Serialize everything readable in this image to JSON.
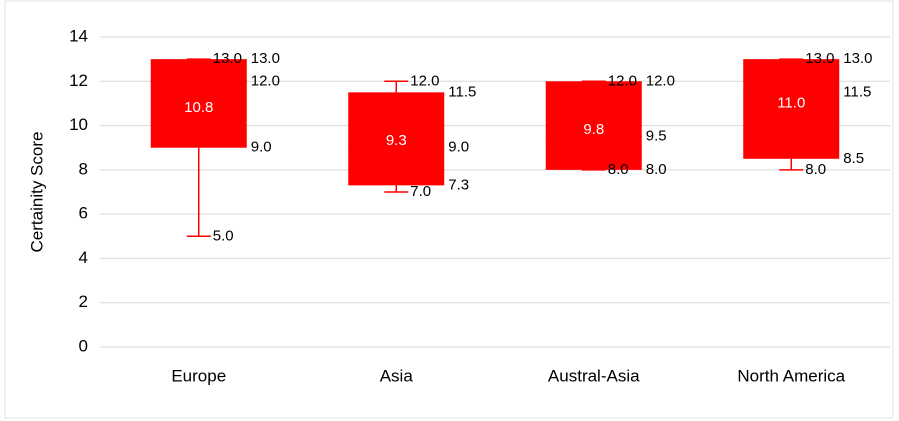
{
  "chart_data": {
    "type": "box",
    "y_label": "Certainity Score",
    "categories": [
      "Europe",
      "Asia",
      "Austral-Asia",
      "North America"
    ],
    "color": "#ff0000",
    "mean_label_color": "#ffffff",
    "ylim": [
      0,
      14
    ],
    "yticks": [
      0,
      2,
      4,
      6,
      8,
      10,
      12,
      14
    ],
    "grid": true,
    "stats": {
      "min": {
        "values": [
          5,
          7,
          8,
          8
        ],
        "value_labels": [
          "5.0",
          "7.0",
          "8.0",
          "8.0"
        ]
      },
      "q1": {
        "values": [
          9,
          7.3,
          8,
          8.5
        ],
        "value_labels": [
          "9.0",
          "7.3",
          "8.0",
          "8.5"
        ]
      },
      "median": {
        "values": [
          12,
          9,
          9.5,
          11.5
        ],
        "value_labels": [
          "12.0",
          "9.0",
          "9.5",
          "11.5"
        ]
      },
      "q3": {
        "values": [
          13,
          11.5,
          12,
          13
        ],
        "value_labels": [
          "13.0",
          "11.5",
          "12.0",
          "13.0"
        ]
      },
      "max": {
        "values": [
          13,
          12,
          12,
          13
        ],
        "value_labels": [
          "13.0",
          "12.0",
          "12.0",
          "13.0"
        ]
      },
      "mean": {
        "values": [
          10.8,
          9.3,
          9.8,
          11.0
        ],
        "value_labels": [
          "10.8",
          "9.3",
          "9.8",
          "11.0"
        ]
      }
    }
  }
}
